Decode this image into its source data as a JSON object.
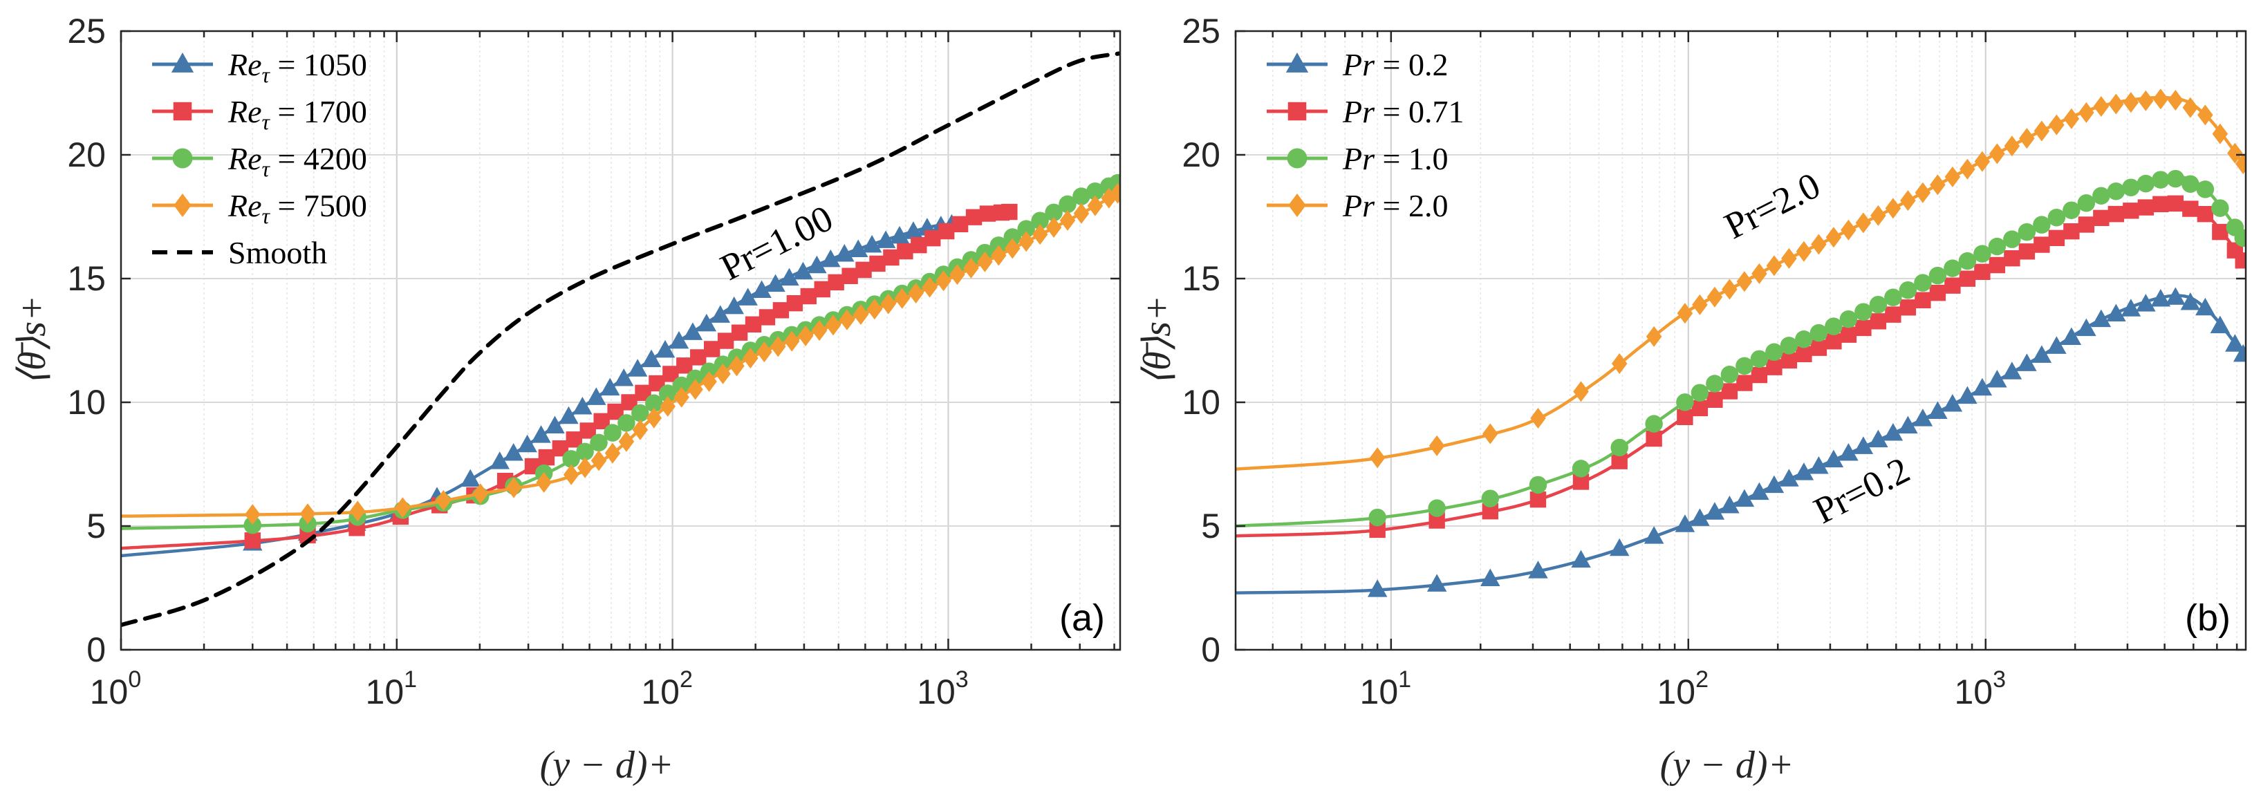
{
  "colors": {
    "blue": "#4477aa",
    "red": "#e8434b",
    "green": "#6bbf59",
    "orange": "#f39a30",
    "black": "#000000",
    "grid": "#d9d9d9",
    "axis": "#262626"
  },
  "chart_data": [
    {
      "id": "a",
      "type": "line",
      "panel_label": "(a)",
      "xlabel": "(y − d)+",
      "ylabel": "⟨θ̄⟩s+",
      "xscale": "log",
      "xlim": [
        1,
        4200
      ],
      "ylim": [
        0,
        25
      ],
      "xticks": [
        1,
        10,
        100,
        1000
      ],
      "xtick_labels": [
        {
          "base": "10",
          "exp": "0"
        },
        {
          "base": "10",
          "exp": "1"
        },
        {
          "base": "10",
          "exp": "2"
        },
        {
          "base": "10",
          "exp": "3"
        }
      ],
      "yticks": [
        0,
        5,
        10,
        15,
        20,
        25
      ],
      "ytick_labels": [
        "0",
        "5",
        "10",
        "15",
        "20",
        "25"
      ],
      "legend_position": "top-left",
      "annotation": {
        "text": "Pr=1.00",
        "x": 250,
        "y": 16,
        "rotation": -27
      },
      "series": [
        {
          "name": "Reτ = 1050",
          "legend_base": "Re",
          "legend_sub": "τ",
          "legend_value": " = 1050",
          "color": "blue",
          "marker": "triangle",
          "dash": false,
          "x": [
            1,
            3,
            6,
            10,
            15,
            20,
            30,
            50,
            100,
            200,
            400,
            800,
            1050
          ],
          "y": [
            3.8,
            4.3,
            4.9,
            5.5,
            6.3,
            7.1,
            8.3,
            10.0,
            12.3,
            14.4,
            15.9,
            17.0,
            17.2
          ]
        },
        {
          "name": "Reτ = 1700",
          "legend_base": "Re",
          "legend_sub": "τ",
          "legend_value": " = 1700",
          "color": "red",
          "marker": "square",
          "dash": false,
          "x": [
            1,
            4,
            8,
            12,
            20,
            30,
            50,
            100,
            200,
            400,
            800,
            1300,
            1700
          ],
          "y": [
            4.1,
            4.5,
            5.0,
            5.6,
            6.3,
            7.3,
            8.9,
            11.2,
            13.2,
            14.9,
            16.4,
            17.6,
            17.7
          ]
        },
        {
          "name": "Reτ = 4200",
          "legend_base": "Re",
          "legend_sub": "τ",
          "legend_value": " = 4200",
          "color": "green",
          "marker": "circle",
          "dash": false,
          "x": [
            1,
            5,
            10,
            20,
            30,
            50,
            100,
            200,
            400,
            800,
            1500,
            3000,
            4200
          ],
          "y": [
            4.9,
            5.1,
            5.6,
            6.2,
            6.8,
            8.1,
            10.5,
            12.2,
            13.4,
            14.7,
            16.3,
            18.3,
            18.9
          ]
        },
        {
          "name": "Reτ = 7500",
          "legend_base": "Re",
          "legend_sub": "τ",
          "legend_value": " = 7500",
          "color": "orange",
          "marker": "diamond",
          "dash": false,
          "x": [
            1,
            5,
            10,
            20,
            40,
            60,
            100,
            200,
            400,
            800,
            1500,
            3000,
            4200
          ],
          "y": [
            5.4,
            5.5,
            5.7,
            6.3,
            6.9,
            7.9,
            10.0,
            11.9,
            13.2,
            14.5,
            15.9,
            17.6,
            18.5
          ]
        },
        {
          "name": "Smooth",
          "legend_base": "",
          "legend_sub": "",
          "legend_value": "Smooth",
          "color": "black",
          "marker": "none",
          "dash": true,
          "x": [
            1,
            2,
            4,
            6,
            10,
            15,
            20,
            30,
            50,
            100,
            200,
            500,
            1000,
            2000,
            3000,
            4200
          ],
          "y": [
            1.0,
            2.0,
            3.8,
            5.4,
            8.2,
            10.5,
            12.0,
            13.6,
            15.0,
            16.4,
            17.7,
            19.5,
            21.2,
            22.9,
            23.8,
            24.1
          ]
        }
      ]
    },
    {
      "id": "b",
      "type": "line",
      "panel_label": "(b)",
      "xlabel": "(y − d)+",
      "ylabel": "⟨θ̄⟩s+",
      "xscale": "log",
      "xlim": [
        3,
        7500
      ],
      "ylim": [
        0,
        25
      ],
      "xticks": [
        10,
        100,
        1000
      ],
      "xtick_labels": [
        {
          "base": "10",
          "exp": "1"
        },
        {
          "base": "10",
          "exp": "2"
        },
        {
          "base": "10",
          "exp": "3"
        }
      ],
      "yticks": [
        0,
        5,
        10,
        15,
        20,
        25
      ],
      "ytick_labels": [
        "0",
        "5",
        "10",
        "15",
        "20",
        "25"
      ],
      "legend_position": "top-left",
      "annotations": [
        {
          "text": "Pr=2.0",
          "x": 200,
          "y": 17.5,
          "rotation": -27
        },
        {
          "text": "Pr=0.2",
          "x": 400,
          "y": 6.0,
          "rotation": -27
        }
      ],
      "series": [
        {
          "name": "Pr = 0.2",
          "legend_base": "Pr",
          "legend_sub": "",
          "legend_value": " = 0.2",
          "color": "blue",
          "marker": "triangle",
          "dash": false,
          "x": [
            3,
            8.5,
            20,
            32,
            50,
            70,
            100,
            150,
            200,
            300,
            500,
            800,
            1500,
            2500,
            4200,
            5500,
            7500
          ],
          "y": [
            2.3,
            2.4,
            2.8,
            3.2,
            3.8,
            4.4,
            5.1,
            6.0,
            6.7,
            7.6,
            8.8,
            10.0,
            11.8,
            13.4,
            14.3,
            13.8,
            11.8
          ]
        },
        {
          "name": "Pr = 0.71",
          "legend_base": "Pr",
          "legend_sub": "",
          "legend_value": " = 0.71",
          "color": "red",
          "marker": "square",
          "dash": false,
          "x": [
            3,
            8.5,
            20,
            32,
            50,
            70,
            100,
            150,
            200,
            300,
            500,
            800,
            1500,
            2500,
            4200,
            5500,
            7500
          ],
          "y": [
            4.6,
            4.8,
            5.5,
            6.1,
            7.1,
            8.2,
            9.5,
            10.7,
            11.5,
            12.4,
            13.6,
            14.8,
            16.3,
            17.5,
            18.1,
            17.6,
            15.6
          ]
        },
        {
          "name": "Pr = 1.0",
          "legend_base": "Pr",
          "legend_sub": "",
          "legend_value": " = 1.0",
          "color": "green",
          "marker": "circle",
          "dash": false,
          "x": [
            3,
            8.5,
            20,
            32,
            50,
            70,
            100,
            150,
            200,
            300,
            500,
            800,
            1500,
            2500,
            4200,
            5500,
            7500
          ],
          "y": [
            5.0,
            5.3,
            6.0,
            6.7,
            7.6,
            8.8,
            10.1,
            11.4,
            12.1,
            13.0,
            14.3,
            15.5,
            17.1,
            18.4,
            19.1,
            18.6,
            16.5
          ]
        },
        {
          "name": "Pr = 2.0",
          "legend_base": "Pr",
          "legend_sub": "",
          "legend_value": " = 2.0",
          "color": "orange",
          "marker": "diamond",
          "dash": false,
          "x": [
            3,
            8.5,
            20,
            32,
            50,
            70,
            100,
            150,
            200,
            300,
            500,
            800,
            1500,
            2500,
            4200,
            5500,
            7500
          ],
          "y": [
            7.3,
            7.7,
            8.6,
            9.4,
            10.9,
            12.3,
            13.7,
            14.8,
            15.6,
            16.6,
            17.9,
            19.2,
            20.9,
            22.0,
            22.3,
            21.6,
            19.5
          ]
        }
      ]
    }
  ]
}
